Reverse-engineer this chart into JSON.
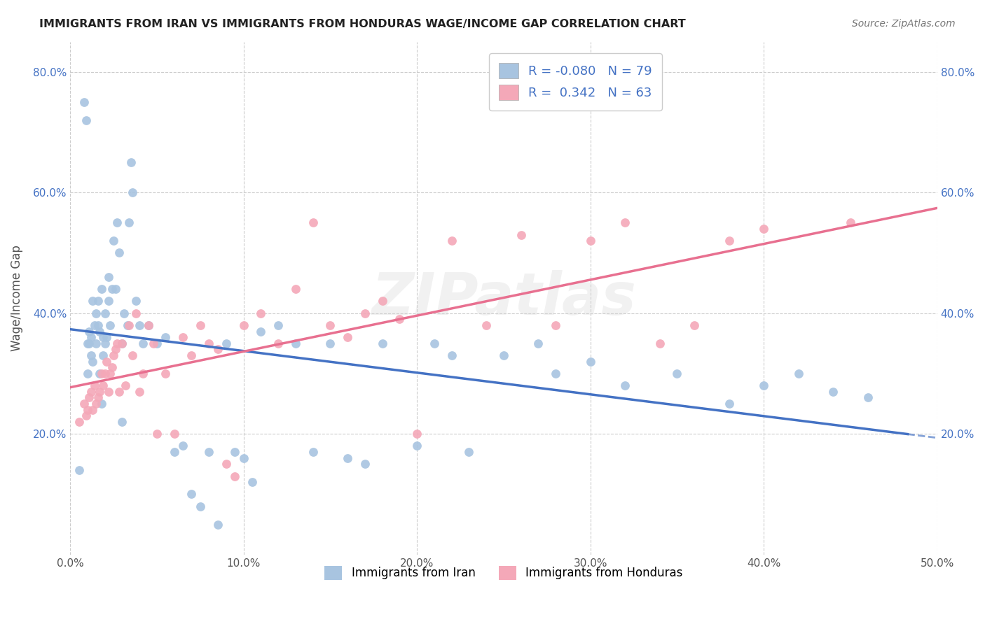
{
  "title": "IMMIGRANTS FROM IRAN VS IMMIGRANTS FROM HONDURAS WAGE/INCOME GAP CORRELATION CHART",
  "source": "Source: ZipAtlas.com",
  "ylabel": "Wage/Income Gap",
  "xlim": [
    0.0,
    0.5
  ],
  "ylim": [
    0.0,
    0.85
  ],
  "xtick_labels": [
    "0.0%",
    "10.0%",
    "20.0%",
    "30.0%",
    "40.0%",
    "50.0%"
  ],
  "xtick_values": [
    0.0,
    0.1,
    0.2,
    0.3,
    0.4,
    0.5
  ],
  "ytick_labels": [
    "20.0%",
    "40.0%",
    "60.0%",
    "80.0%"
  ],
  "ytick_values": [
    0.2,
    0.4,
    0.6,
    0.8
  ],
  "iran_R": -0.08,
  "iran_N": 79,
  "honduras_R": 0.342,
  "honduras_N": 63,
  "iran_dot_color": "#a8c4e0",
  "honduras_dot_color": "#f4a8b8",
  "iran_line_color": "#4472c4",
  "honduras_line_color": "#e87090",
  "background_color": "#ffffff",
  "grid_color": "#cccccc",
  "watermark": "ZIPatlas",
  "legend_iran_label": "Immigrants from Iran",
  "legend_honduras_label": "Immigrants from Honduras",
  "iran_x": [
    0.005,
    0.008,
    0.009,
    0.01,
    0.01,
    0.011,
    0.011,
    0.012,
    0.012,
    0.013,
    0.013,
    0.014,
    0.015,
    0.015,
    0.016,
    0.016,
    0.017,
    0.017,
    0.018,
    0.018,
    0.019,
    0.019,
    0.02,
    0.02,
    0.021,
    0.022,
    0.022,
    0.023,
    0.024,
    0.025,
    0.026,
    0.027,
    0.028,
    0.03,
    0.03,
    0.031,
    0.033,
    0.034,
    0.035,
    0.036,
    0.038,
    0.04,
    0.042,
    0.045,
    0.05,
    0.055,
    0.06,
    0.065,
    0.07,
    0.075,
    0.08,
    0.085,
    0.09,
    0.095,
    0.1,
    0.105,
    0.11,
    0.12,
    0.13,
    0.14,
    0.15,
    0.16,
    0.17,
    0.18,
    0.2,
    0.21,
    0.22,
    0.23,
    0.25,
    0.27,
    0.28,
    0.3,
    0.32,
    0.35,
    0.38,
    0.4,
    0.42,
    0.44,
    0.46
  ],
  "iran_y": [
    0.14,
    0.75,
    0.72,
    0.35,
    0.3,
    0.37,
    0.35,
    0.33,
    0.36,
    0.32,
    0.42,
    0.38,
    0.35,
    0.4,
    0.42,
    0.38,
    0.37,
    0.3,
    0.25,
    0.44,
    0.36,
    0.33,
    0.4,
    0.35,
    0.36,
    0.42,
    0.46,
    0.38,
    0.44,
    0.52,
    0.44,
    0.55,
    0.5,
    0.35,
    0.22,
    0.4,
    0.38,
    0.55,
    0.65,
    0.6,
    0.42,
    0.38,
    0.35,
    0.38,
    0.35,
    0.36,
    0.17,
    0.18,
    0.1,
    0.08,
    0.17,
    0.05,
    0.35,
    0.17,
    0.16,
    0.12,
    0.37,
    0.38,
    0.35,
    0.17,
    0.35,
    0.16,
    0.15,
    0.35,
    0.18,
    0.35,
    0.33,
    0.17,
    0.33,
    0.35,
    0.3,
    0.32,
    0.28,
    0.3,
    0.25,
    0.28,
    0.3,
    0.27,
    0.26
  ],
  "honduras_x": [
    0.005,
    0.008,
    0.009,
    0.01,
    0.011,
    0.012,
    0.013,
    0.014,
    0.015,
    0.016,
    0.017,
    0.018,
    0.019,
    0.02,
    0.021,
    0.022,
    0.023,
    0.024,
    0.025,
    0.026,
    0.027,
    0.028,
    0.03,
    0.032,
    0.034,
    0.036,
    0.038,
    0.04,
    0.042,
    0.045,
    0.048,
    0.05,
    0.055,
    0.06,
    0.065,
    0.07,
    0.075,
    0.08,
    0.085,
    0.09,
    0.095,
    0.1,
    0.11,
    0.12,
    0.13,
    0.14,
    0.15,
    0.16,
    0.17,
    0.18,
    0.19,
    0.2,
    0.22,
    0.24,
    0.26,
    0.28,
    0.3,
    0.32,
    0.34,
    0.36,
    0.38,
    0.4,
    0.45
  ],
  "honduras_y": [
    0.22,
    0.25,
    0.23,
    0.24,
    0.26,
    0.27,
    0.24,
    0.28,
    0.25,
    0.26,
    0.27,
    0.3,
    0.28,
    0.3,
    0.32,
    0.27,
    0.3,
    0.31,
    0.33,
    0.34,
    0.35,
    0.27,
    0.35,
    0.28,
    0.38,
    0.33,
    0.4,
    0.27,
    0.3,
    0.38,
    0.35,
    0.2,
    0.3,
    0.2,
    0.36,
    0.33,
    0.38,
    0.35,
    0.34,
    0.15,
    0.13,
    0.38,
    0.4,
    0.35,
    0.44,
    0.55,
    0.38,
    0.36,
    0.4,
    0.42,
    0.39,
    0.2,
    0.52,
    0.38,
    0.53,
    0.38,
    0.52,
    0.55,
    0.35,
    0.38,
    0.52,
    0.54,
    0.55
  ]
}
